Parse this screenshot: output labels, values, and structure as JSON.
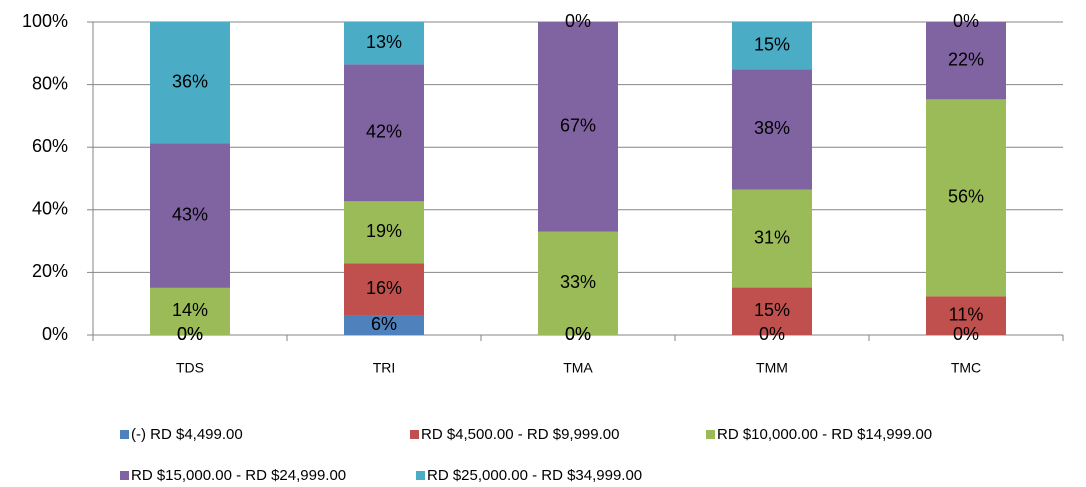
{
  "chart_data": {
    "type": "bar",
    "stacking": "percent",
    "categories": [
      "TDS",
      "TRI",
      "TMA",
      "TMM",
      "TMC"
    ],
    "series": [
      {
        "name": "(-) RD $4,499.00",
        "color": "#4f81bd",
        "values": [
          0,
          6,
          0,
          0,
          0
        ],
        "value_labels": [
          "0%",
          "6%",
          "0%",
          "0%",
          "0%"
        ]
      },
      {
        "name": "RD $4,500.00 - RD $9,999.00",
        "color": "#c0504d",
        "values": [
          0,
          16,
          0,
          15,
          11
        ],
        "value_labels": [
          "0%",
          "16%",
          "0%",
          "15%",
          "11%"
        ]
      },
      {
        "name": "RD $10,000.00 - RD $14,999.00",
        "color": "#9bbb59",
        "values": [
          14,
          19,
          33,
          31,
          56
        ],
        "value_labels": [
          "14%",
          "19%",
          "33%",
          "31%",
          "56%"
        ]
      },
      {
        "name": "RD $15,000.00 - RD $24,999.00",
        "color": "#8064a2",
        "values": [
          43,
          42,
          67,
          38,
          22
        ],
        "value_labels": [
          "43%",
          "42%",
          "67%",
          "38%",
          "22%"
        ]
      },
      {
        "name": "RD $25,000.00 - RD $34,999.00",
        "color": "#4bacc6",
        "values": [
          36,
          13,
          0,
          15,
          0
        ],
        "value_labels": [
          "36%",
          "13%",
          "0%",
          "15%",
          "0%"
        ]
      }
    ],
    "ylim": [
      0,
      100
    ],
    "yticks": [
      {
        "value": 0,
        "label": "0%"
      },
      {
        "value": 20,
        "label": "20%"
      },
      {
        "value": 40,
        "label": "40%"
      },
      {
        "value": 60,
        "label": "60%"
      },
      {
        "value": 80,
        "label": "80%"
      },
      {
        "value": 100,
        "label": "100%"
      }
    ],
    "grid": true,
    "legend": "bottom"
  }
}
